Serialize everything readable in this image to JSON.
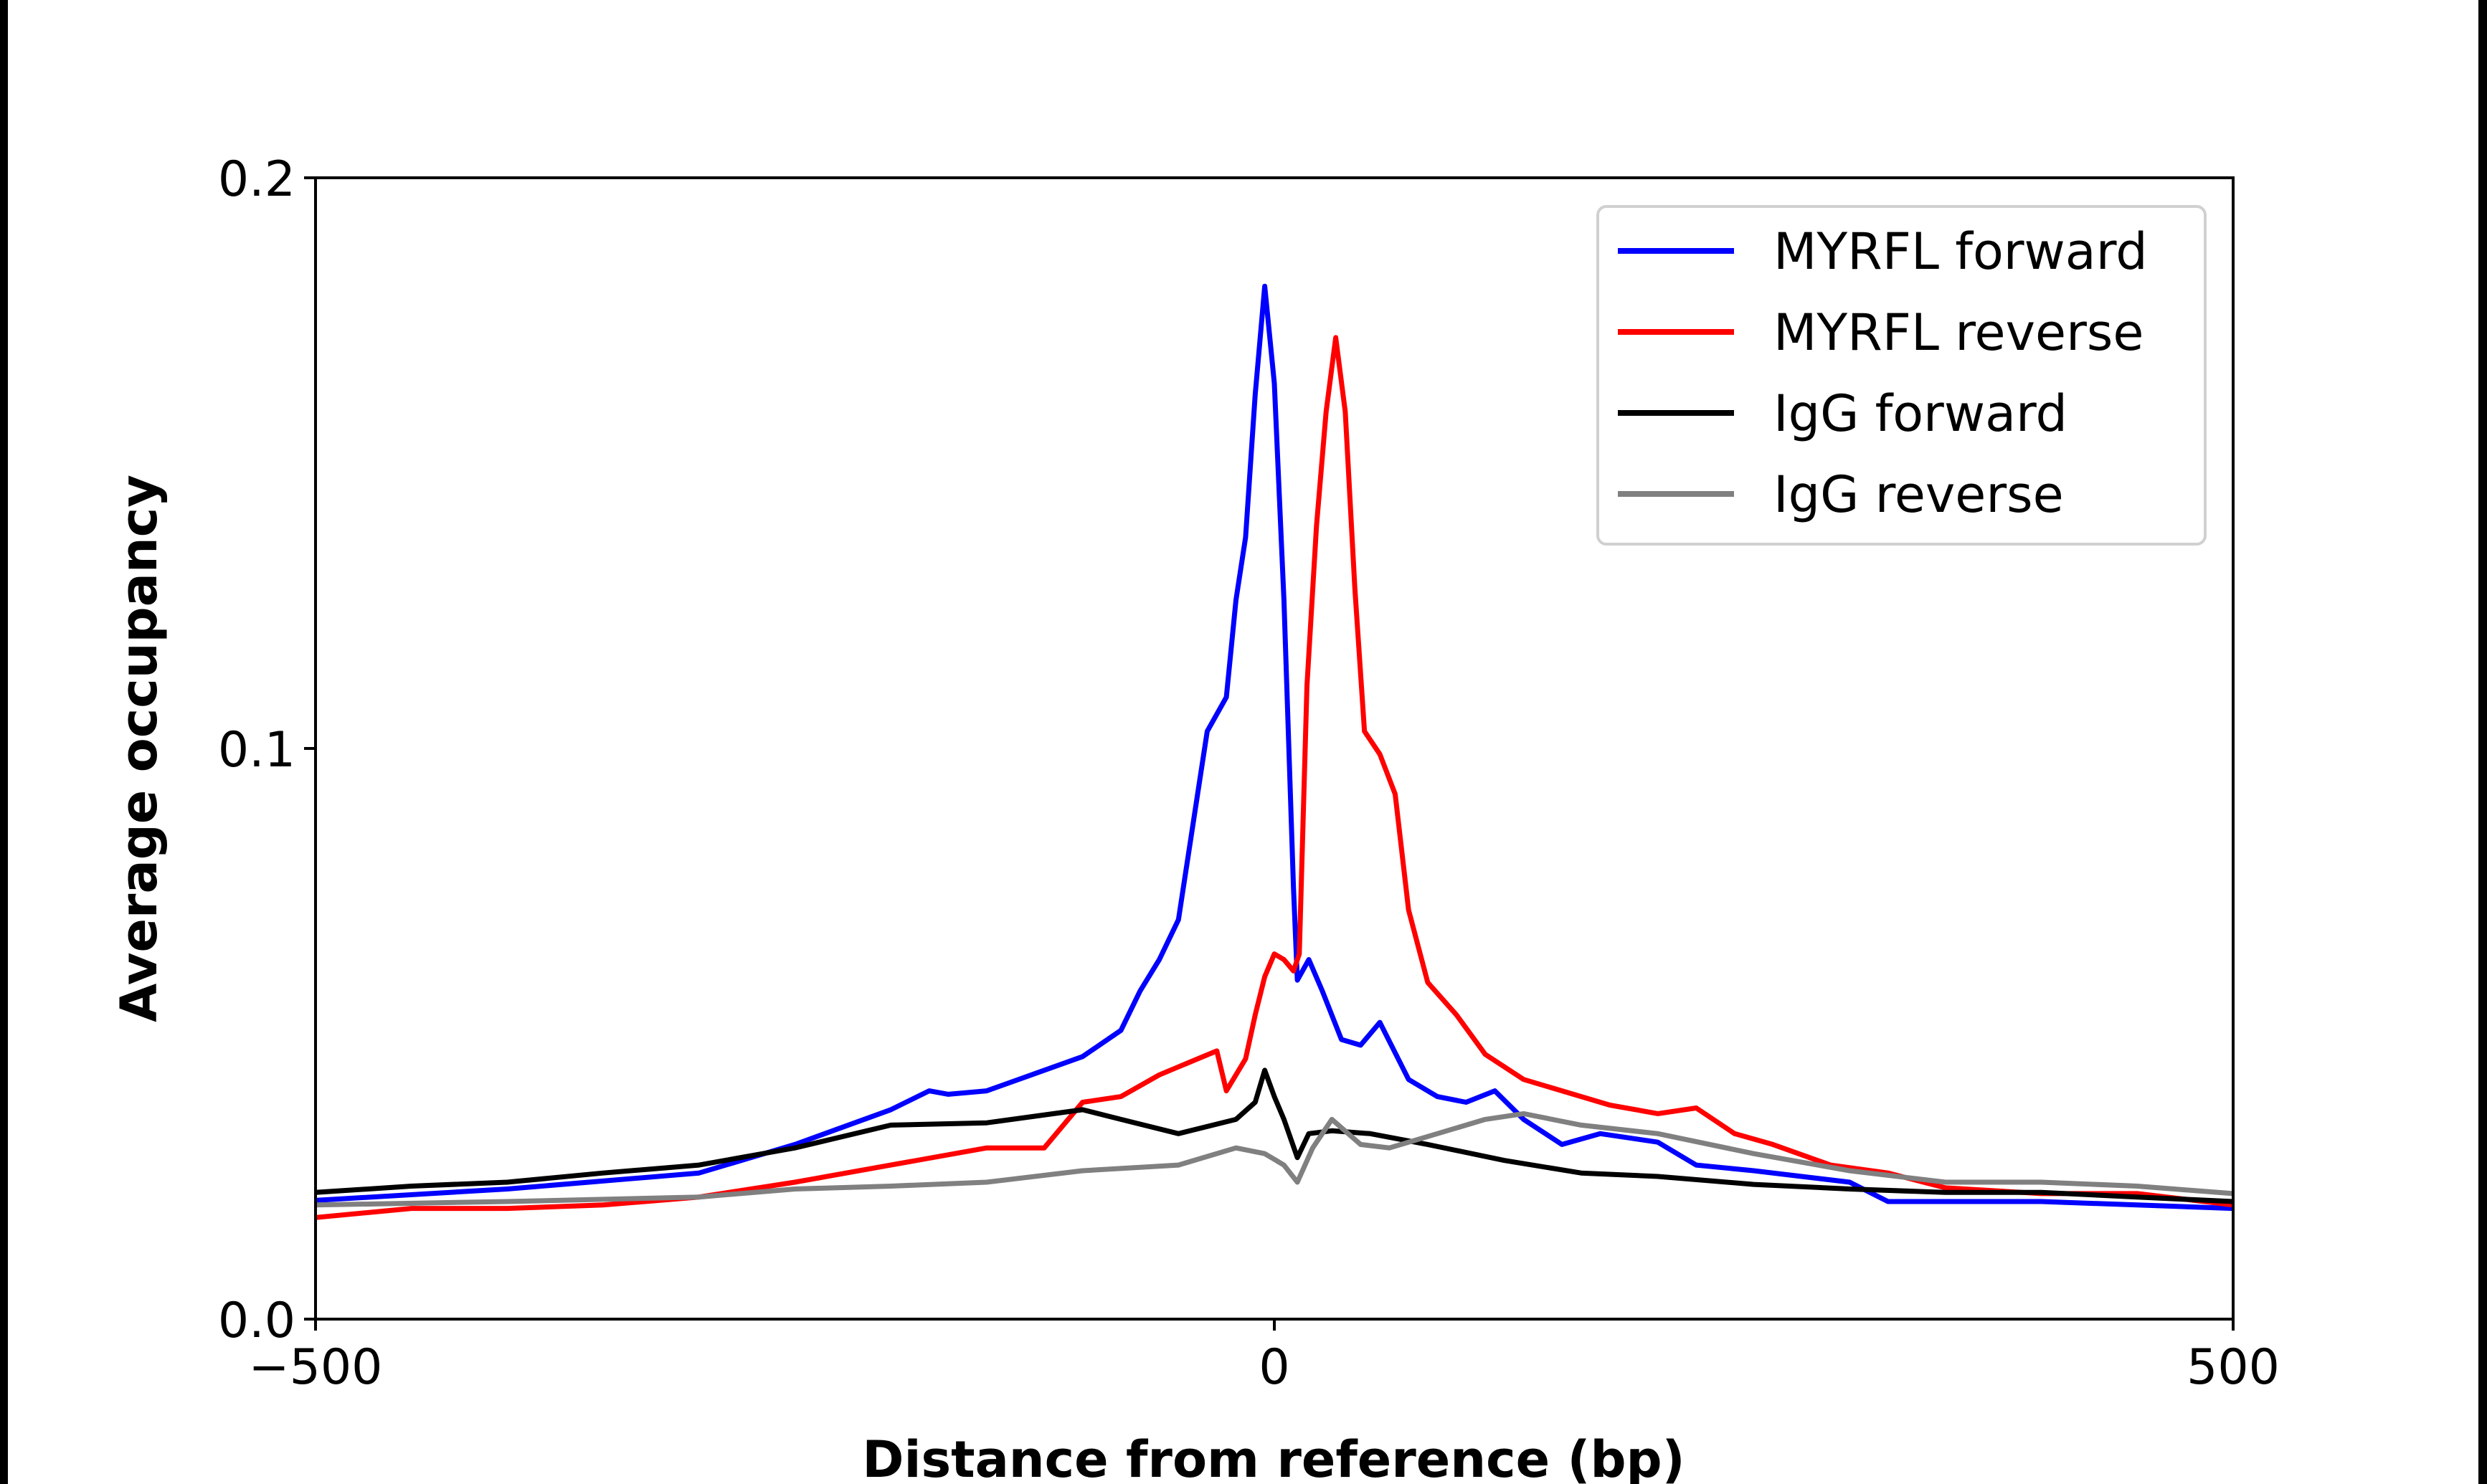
{
  "chart_data": {
    "type": "line",
    "title": "",
    "xlabel": "Distance from reference (bp)",
    "ylabel": "Average occupancy",
    "xlim": [
      -500,
      500
    ],
    "ylim": [
      0.0,
      0.2
    ],
    "xticks": [
      -500,
      0,
      500
    ],
    "xtick_labels": [
      "−500",
      "0",
      "500"
    ],
    "yticks": [
      0.0,
      0.1,
      0.2
    ],
    "ytick_labels": [
      "0.0",
      "0.1",
      "0.2"
    ],
    "grid": false,
    "legend_position": "top-right",
    "series": [
      {
        "name": "MYRFL forward",
        "color": "#0000ff",
        "x": [
          -500,
          -400,
          -300,
          -250,
          -200,
          -180,
          -170,
          -150,
          -125,
          -100,
          -80,
          -70,
          -60,
          -50,
          -40,
          -35,
          -25,
          -20,
          -15,
          -10,
          -5,
          0,
          5,
          10,
          12,
          18,
          25,
          35,
          45,
          55,
          70,
          85,
          100,
          115,
          130,
          150,
          170,
          200,
          220,
          250,
          300,
          320,
          350,
          400,
          450,
          500
        ],
        "y": [
          0.0208,
          0.0228,
          0.0256,
          0.0306,
          0.0367,
          0.04,
          0.0394,
          0.04,
          0.043,
          0.046,
          0.0506,
          0.0575,
          0.063,
          0.07,
          0.092,
          0.103,
          0.109,
          0.126,
          0.137,
          0.162,
          0.181,
          0.164,
          0.126,
          0.0756,
          0.0594,
          0.063,
          0.0575,
          0.049,
          0.048,
          0.052,
          0.042,
          0.039,
          0.038,
          0.04,
          0.035,
          0.0306,
          0.0325,
          0.031,
          0.027,
          0.026,
          0.024,
          0.0206,
          0.0206,
          0.0206,
          0.02,
          0.0194
        ]
      },
      {
        "name": "MYRFL reverse",
        "color": "#ff0000",
        "x": [
          -500,
          -450,
          -400,
          -350,
          -300,
          -250,
          -200,
          -150,
          -120,
          -100,
          -80,
          -60,
          -40,
          -30,
          -25,
          -15,
          -10,
          -5,
          0,
          5,
          10,
          13,
          17,
          22,
          27,
          32,
          37,
          42,
          47,
          55,
          63,
          70,
          80,
          95,
          110,
          130,
          150,
          175,
          200,
          220,
          240,
          260,
          290,
          320,
          350,
          400,
          450,
          500
        ],
        "y": [
          0.0178,
          0.0194,
          0.0194,
          0.02,
          0.0214,
          0.024,
          0.027,
          0.03,
          0.03,
          0.038,
          0.039,
          0.0428,
          0.0456,
          0.047,
          0.04,
          0.0456,
          0.0533,
          0.06,
          0.064,
          0.063,
          0.061,
          0.064,
          0.111,
          0.139,
          0.159,
          0.172,
          0.159,
          0.128,
          0.103,
          0.099,
          0.092,
          0.0717,
          0.059,
          0.0533,
          0.0464,
          0.042,
          0.04,
          0.0375,
          0.036,
          0.037,
          0.0325,
          0.0306,
          0.027,
          0.0256,
          0.023,
          0.022,
          0.022,
          0.02
        ]
      },
      {
        "name": "IgG forward",
        "color": "#000000",
        "x": [
          -500,
          -450,
          -400,
          -350,
          -300,
          -250,
          -200,
          -150,
          -100,
          -80,
          -50,
          -20,
          -10,
          -5,
          0,
          5,
          12,
          18,
          30,
          50,
          80,
          120,
          160,
          200,
          250,
          300,
          350,
          400,
          450,
          500
        ],
        "y": [
          0.0222,
          0.0233,
          0.024,
          0.0256,
          0.027,
          0.03,
          0.034,
          0.0344,
          0.0367,
          0.035,
          0.0325,
          0.035,
          0.038,
          0.0436,
          0.039,
          0.035,
          0.0283,
          0.0325,
          0.033,
          0.0325,
          0.0306,
          0.0278,
          0.0256,
          0.025,
          0.0236,
          0.0228,
          0.0222,
          0.0222,
          0.0214,
          0.0206
        ]
      },
      {
        "name": "IgG reverse",
        "color": "#808080",
        "x": [
          -500,
          -400,
          -300,
          -250,
          -200,
          -150,
          -100,
          -50,
          -20,
          -5,
          5,
          12,
          20,
          30,
          45,
          60,
          80,
          110,
          130,
          160,
          200,
          250,
          300,
          350,
          400,
          450,
          500
        ],
        "y": [
          0.02,
          0.0206,
          0.0214,
          0.0228,
          0.0233,
          0.024,
          0.026,
          0.027,
          0.03,
          0.029,
          0.027,
          0.024,
          0.03,
          0.035,
          0.0306,
          0.03,
          0.032,
          0.035,
          0.036,
          0.034,
          0.0325,
          0.029,
          0.026,
          0.024,
          0.024,
          0.0233,
          0.022
        ]
      }
    ]
  }
}
